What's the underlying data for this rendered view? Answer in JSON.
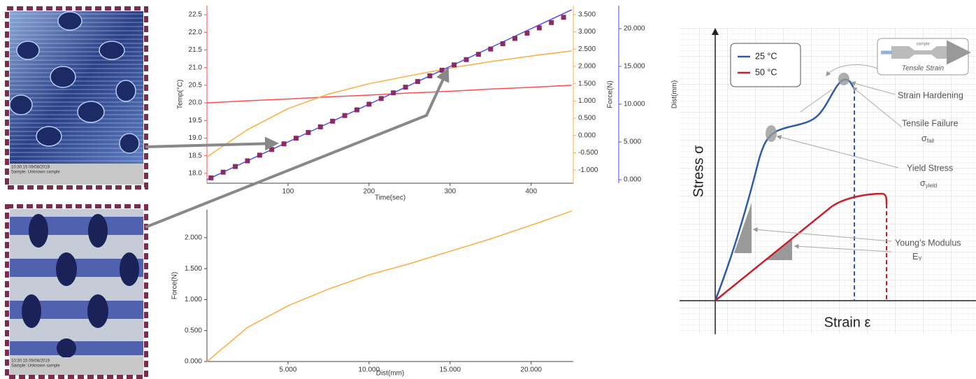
{
  "chart_data": [
    {
      "type": "line",
      "x_label": "Time(sec)",
      "y_label": "Temp(°C)",
      "y2_label": "Force(N)",
      "y3_label": "Dist(mm)",
      "x": [
        0,
        50,
        100,
        150,
        200,
        250,
        300,
        350,
        400,
        450
      ],
      "xlim": [
        0,
        452
      ],
      "xticks": [
        100,
        200,
        300,
        400
      ],
      "ylim": [
        17.72,
        22.76
      ],
      "yticks": [
        {
          "value": 18,
          "label": "18.0"
        },
        18.5,
        {
          "value": 19,
          "label": "19.0"
        },
        19.5,
        {
          "value": 20,
          "label": "20.0"
        },
        20.5,
        {
          "value": 21,
          "label": "21.0"
        },
        21.5,
        {
          "value": 22,
          "label": "22.0"
        },
        22.5
      ],
      "y2lim": [
        -1.38,
        3.76
      ],
      "y2ticks": [
        {
          "value": -1,
          "label": "-1.000"
        },
        {
          "value": -0.5,
          "label": "-0.500"
        },
        {
          "value": 0,
          "label": "0.000"
        },
        {
          "value": 0.5,
          "label": "0.500"
        },
        {
          "value": 1,
          "label": "1.000"
        },
        {
          "value": 1.5,
          "label": "1.500"
        },
        {
          "value": 2,
          "label": "2.000"
        },
        {
          "value": 2.5,
          "label": "2.500"
        },
        {
          "value": 3,
          "label": "3.000"
        },
        {
          "value": 3.5,
          "label": "3.500"
        }
      ],
      "y3lim": [
        -0.46,
        23.05
      ],
      "y3ticks": [
        {
          "value": 0,
          "label": "0.000"
        },
        {
          "value": 5,
          "label": "5.000"
        },
        {
          "value": 10,
          "label": "10.000"
        },
        {
          "value": 15,
          "label": "15.000"
        },
        {
          "value": 20,
          "label": "20.000"
        }
      ],
      "series": [
        {
          "color": "#ff4d4d",
          "axis": "y",
          "values": [
            20.0,
            20.06,
            20.11,
            20.17,
            20.22,
            20.28,
            20.33,
            20.39,
            20.44,
            20.5
          ]
        },
        {
          "color": "#ffab40",
          "axis": "y2",
          "values": [
            -0.62,
            0.17,
            0.78,
            1.2,
            1.5,
            1.73,
            1.95,
            2.14,
            2.3,
            2.45
          ]
        },
        {
          "color": "#4a4aff",
          "axis": "y3",
          "values": [
            0,
            2.5,
            5,
            7.5,
            10,
            12.5,
            15,
            17.5,
            20,
            22.5
          ]
        },
        {
          "color": "#8e2a62",
          "axis": "y3",
          "style": "markers",
          "x": [
            5,
            20,
            35,
            50,
            65,
            80,
            95,
            110,
            125,
            140,
            155,
            170,
            185,
            200,
            215,
            230,
            245,
            260,
            275,
            290,
            305,
            320,
            335,
            350,
            365,
            380,
            395,
            410,
            425,
            440
          ],
          "values": [
            0.25,
            1.0,
            1.75,
            2.5,
            3.25,
            4.0,
            4.75,
            5.5,
            6.25,
            7.0,
            7.75,
            8.5,
            9.25,
            10.0,
            10.75,
            11.5,
            12.25,
            13.0,
            13.75,
            14.5,
            15.2,
            15.9,
            16.6,
            17.3,
            18.0,
            18.7,
            19.4,
            20.1,
            20.8,
            21.5
          ]
        }
      ]
    },
    {
      "type": "line",
      "x_label": "Dist(mm)",
      "y_label": "Force(N)",
      "x": [
        0,
        2.5,
        5,
        7.5,
        10,
        12.5,
        15,
        17.5,
        20,
        22.5
      ],
      "xlim": [
        0,
        22.6
      ],
      "xticks": [
        {
          "value": 5,
          "label": "5.000"
        },
        {
          "value": 10,
          "label": "10.000"
        },
        {
          "value": 15,
          "label": "15.000"
        },
        {
          "value": 20,
          "label": "20.000"
        }
      ],
      "ylim": [
        0,
        2.45
      ],
      "yticks": [
        {
          "value": 0,
          "label": "0.000"
        },
        {
          "value": 0.5,
          "label": "0.500"
        },
        {
          "value": 1,
          "label": "1.000"
        },
        {
          "value": 1.5,
          "label": "1.500"
        },
        {
          "value": 2,
          "label": "2.000"
        }
      ],
      "series": [
        {
          "color": "#ffab40",
          "axis": "y",
          "values": [
            0,
            0.55,
            0.9,
            1.17,
            1.4,
            1.58,
            1.78,
            1.98,
            2.2,
            2.43
          ]
        }
      ]
    }
  ],
  "micrographs": [
    {
      "timestamp": "10:30:15 09/08/2019",
      "sample": "Sample: Unknown sample"
    },
    {
      "timestamp": "10:30:15 09/08/2019",
      "sample": "Sample: Unknown sample"
    }
  ],
  "diagram": {
    "legend": [
      "25 °C",
      "50 °C"
    ],
    "inset_sample": "sample",
    "inset_title": "Tensile Strain",
    "strain_hardening": "Strain Hardening",
    "tensile_failure": "Tensile Failure",
    "fail_symbol": "σ",
    "fail_sub": "fail",
    "yield_stress": "Yield Stress",
    "yield_symbol": "σ",
    "yield_sub": "yield",
    "youngs_modulus": "Young’s Modulus",
    "modulus_symbol": "E",
    "modulus_sub": "Y",
    "y_axis": "Stress σ",
    "x_axis": "Strain ε"
  }
}
